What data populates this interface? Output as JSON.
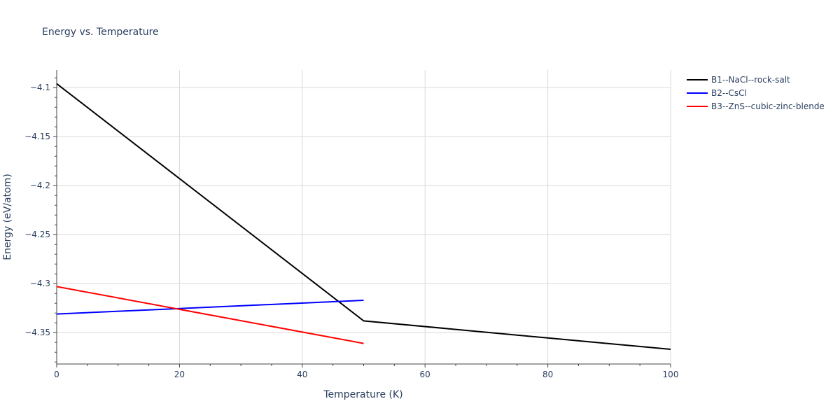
{
  "chart_data": {
    "type": "line",
    "title": "Energy vs. Temperature",
    "xlabel": "Temperature (K)",
    "ylabel": "Energy (eV/atom)",
    "xlim": [
      0,
      100
    ],
    "ylim": [
      -4.382,
      -4.082
    ],
    "xticks": [
      0,
      20,
      40,
      60,
      80,
      100
    ],
    "xtick_labels": [
      "0",
      "20",
      "40",
      "60",
      "80",
      "100"
    ],
    "yticks": [
      -4.1,
      -4.15,
      -4.2,
      -4.25,
      -4.3,
      -4.35
    ],
    "ytick_labels": [
      "−4.1",
      "−4.15",
      "−4.2",
      "−4.25",
      "−4.3",
      "−4.35"
    ],
    "grid": true,
    "legend_position": "top-right",
    "series": [
      {
        "name": "B1--NaCl--rock-salt",
        "color": "#000000",
        "x": [
          0,
          50,
          100
        ],
        "y": [
          -4.096,
          -4.338,
          -4.367
        ]
      },
      {
        "name": "B2--CsCl",
        "color": "#0000ff",
        "x": [
          0,
          50
        ],
        "y": [
          -4.331,
          -4.317
        ]
      },
      {
        "name": "B3--ZnS--cubic-zinc-blende",
        "color": "#ff0000",
        "x": [
          0,
          50
        ],
        "y": [
          -4.303,
          -4.361
        ]
      }
    ]
  }
}
